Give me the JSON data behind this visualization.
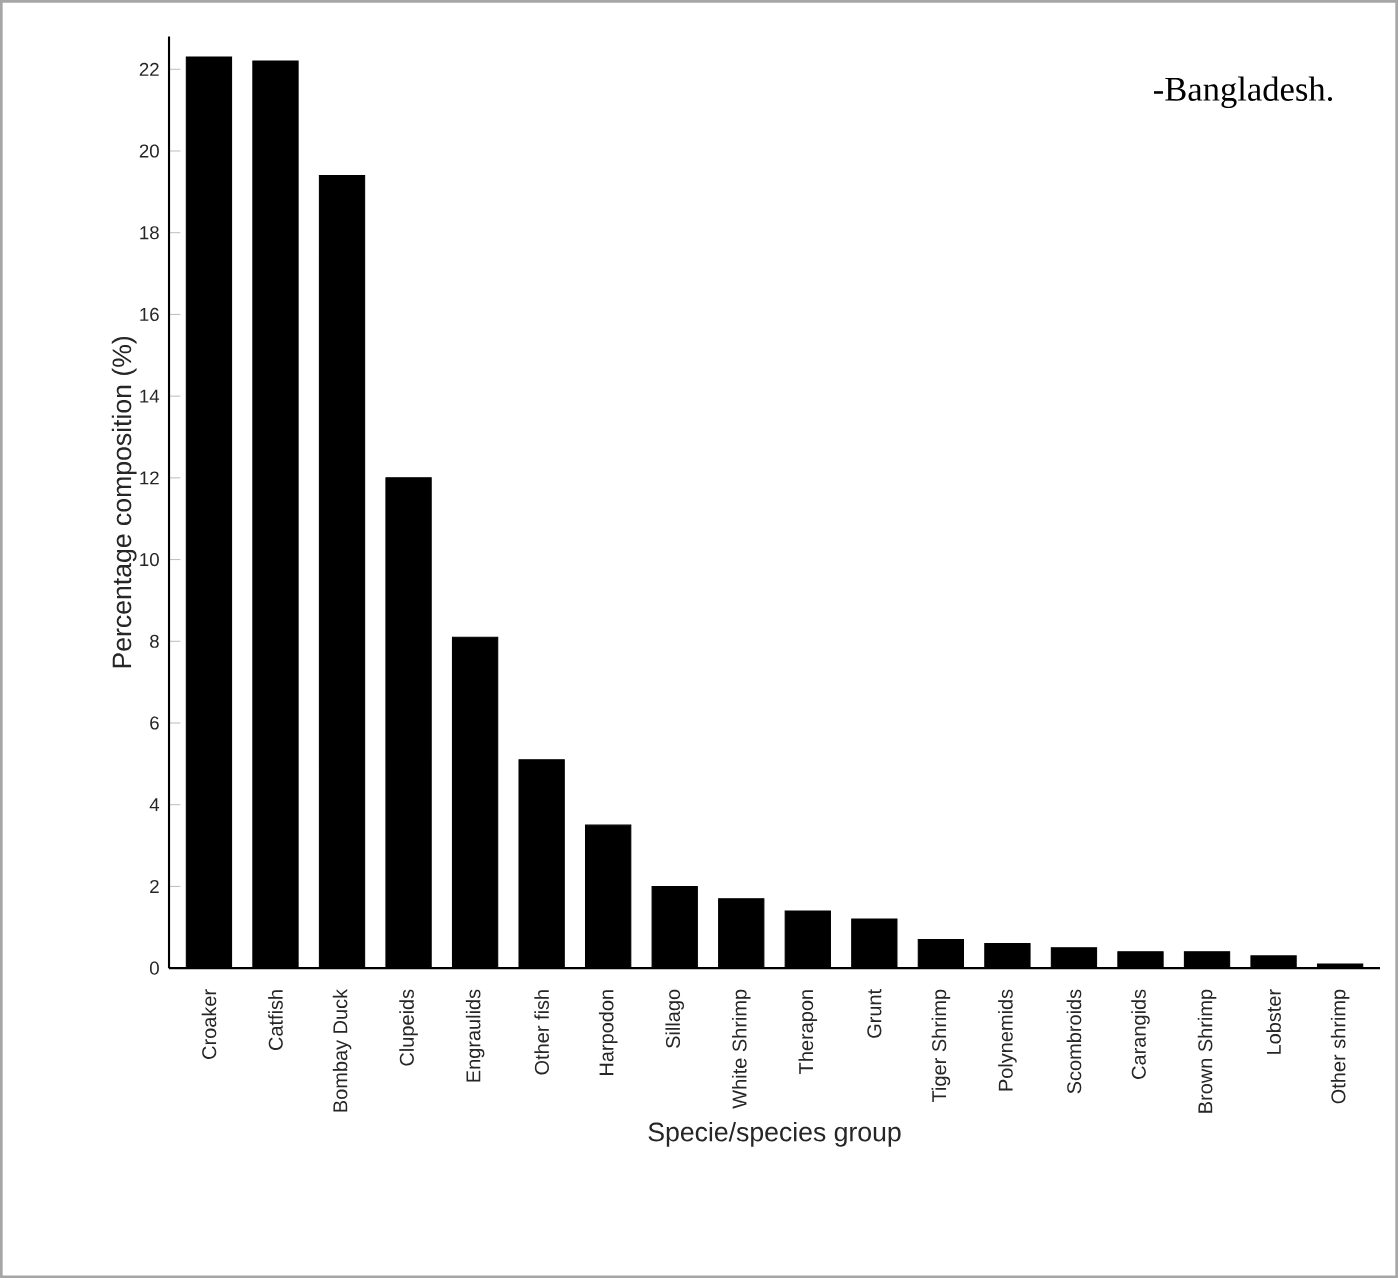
{
  "chart_data": {
    "type": "bar",
    "title": "-Bangladesh.",
    "xlabel": "Specie/species group",
    "ylabel": "Percentage composition (%)",
    "categories": [
      "Croaker",
      "Catfish",
      "Bombay Duck",
      "Clupeids",
      "Engraulids",
      "Other fish",
      "Harpodon",
      "Sillago",
      "White Shrimp",
      "Therapon",
      "Grunt",
      "Tiger Shrimp",
      "Polynemids",
      "Scombroids",
      "Carangids",
      "Brown Shrimp",
      "Lobster",
      "Other shrimp"
    ],
    "values": [
      22.3,
      22.2,
      19.4,
      12.0,
      8.1,
      5.1,
      3.5,
      2.0,
      1.7,
      1.4,
      1.2,
      0.7,
      0.6,
      0.5,
      0.4,
      0.4,
      0.3,
      0.1
    ],
    "color": "#000000",
    "ylim": [
      0,
      22.8
    ],
    "yticks": [
      0,
      2,
      4,
      6,
      8,
      10,
      12,
      14,
      16,
      18,
      20,
      22
    ],
    "grid": false
  }
}
